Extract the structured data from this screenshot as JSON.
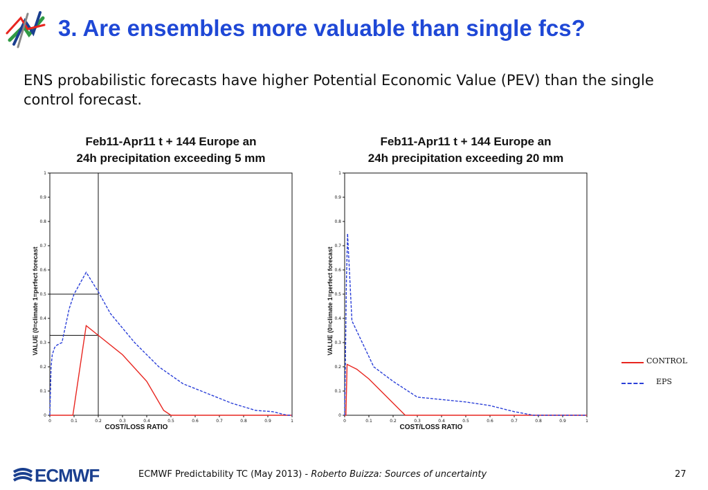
{
  "slide": {
    "title": "3. Are ensembles more valuable than single fcs?",
    "intro": "ENS probabilistic forecasts have higher Potential Economic Value (PEV) than the single control forecast."
  },
  "colors": {
    "title": "#1f48d6",
    "control": "#e8251f",
    "eps": "#2a3fd8",
    "logo": "#1a3f8f"
  },
  "legend": {
    "control": "CONTROL",
    "eps": "EPS"
  },
  "footer": {
    "left": "ECMWF Predictability TC (May 2013) -",
    "italic": "Roberto Buizza: Sources of uncertainty",
    "page": "27",
    "logo_text": "ECMWF"
  },
  "chart_data": [
    {
      "type": "line",
      "title": "Feb11-Apr11  t + 144   Europe  an",
      "subtitle": "24h precipitation exceeding    5 mm",
      "xlabel": "COST/LOSS RATIO",
      "ylabel": "VALUE (0=climate 1=perfect forecast",
      "xlim": [
        0,
        1
      ],
      "ylim": [
        0,
        1
      ],
      "xticks": [
        "0",
        "0.1",
        "0.2",
        "0.3",
        "0.4",
        "0.5",
        "0.6",
        "0.7",
        "0.8",
        "0.9",
        "1"
      ],
      "yticks": [
        "0",
        "0.1",
        "0.2",
        "0.3",
        "0.4",
        "0.5",
        "0.6",
        "0.7",
        "0.8",
        "0.9",
        "1"
      ],
      "series": [
        {
          "name": "CONTROL",
          "style": "solid",
          "x": [
            0,
            0.095,
            0.15,
            0.2,
            0.3,
            0.4,
            0.47,
            0.5,
            1
          ],
          "y": [
            0,
            0,
            0.37,
            0.33,
            0.25,
            0.14,
            0.02,
            0,
            0
          ]
        },
        {
          "name": "EPS",
          "style": "dashed",
          "x": [
            0,
            0.005,
            0.01,
            0.02,
            0.03,
            0.05,
            0.08,
            0.1,
            0.15,
            0.2,
            0.25,
            0.35,
            0.45,
            0.55,
            0.65,
            0.7,
            0.75,
            0.85,
            0.92,
            0.96,
            0.98,
            1
          ],
          "y": [
            0,
            0.2,
            0.25,
            0.28,
            0.29,
            0.3,
            0.44,
            0.5,
            0.59,
            0.51,
            0.42,
            0.3,
            0.2,
            0.13,
            0.09,
            0.07,
            0.05,
            0.02,
            0.015,
            0.005,
            0,
            0
          ]
        }
      ],
      "reference_lines": {
        "x": 0.2,
        "y": [
          0.5,
          0.33
        ]
      }
    },
    {
      "type": "line",
      "title": "Feb11-Apr11  t + 144   Europe  an",
      "subtitle": "24h precipitation exceeding    20 mm",
      "xlabel": "COST/LOSS RATIO",
      "ylabel": "VALUE (0=climate 1=perfect forecast",
      "xlim": [
        0,
        1
      ],
      "ylim": [
        0,
        1
      ],
      "xticks": [
        "0",
        "0.1",
        "0.2",
        "0.3",
        "0.4",
        "0.5",
        "0.6",
        "0.7",
        "0.8",
        "0.9",
        "1"
      ],
      "yticks": [
        "0",
        "0.1",
        "0.2",
        "0.3",
        "0.4",
        "0.5",
        "0.6",
        "0.7",
        "0.8",
        "0.9",
        "1"
      ],
      "series": [
        {
          "name": "CONTROL",
          "style": "solid",
          "x": [
            0,
            0.005,
            0.01,
            0.05,
            0.1,
            0.15,
            0.2,
            0.24,
            0.25,
            1
          ],
          "y": [
            0,
            0,
            0.21,
            0.19,
            0.15,
            0.1,
            0.05,
            0.01,
            0,
            0
          ]
        },
        {
          "name": "EPS",
          "style": "dashed",
          "x": [
            0,
            0.003,
            0.007,
            0.012,
            0.03,
            0.12,
            0.2,
            0.3,
            0.4,
            0.5,
            0.6,
            0.7,
            0.78,
            0.8,
            1
          ],
          "y": [
            0,
            0.2,
            0.55,
            0.75,
            0.39,
            0.2,
            0.14,
            0.075,
            0.065,
            0.055,
            0.04,
            0.015,
            0,
            0,
            0
          ]
        }
      ],
      "reference_lines": null
    }
  ]
}
